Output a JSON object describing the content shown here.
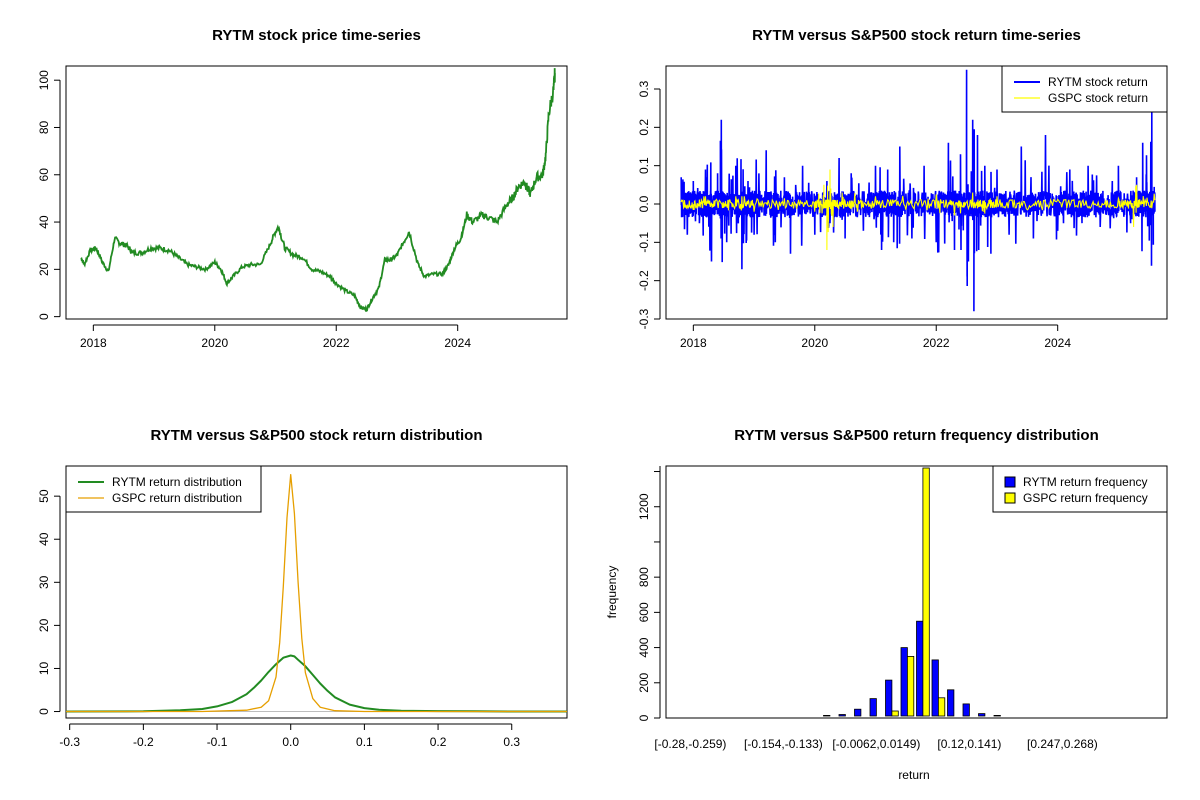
{
  "chart_data": [
    {
      "type": "line",
      "title": "RYTM stock price time-series",
      "xlabel": "",
      "ylabel": "",
      "xlim": [
        2017.55,
        2025.8
      ],
      "ylim": [
        -1,
        106
      ],
      "x_ticks": [
        2018,
        2020,
        2022,
        2024
      ],
      "x_tick_labels": [
        "2018",
        "2020",
        "2022",
        "2024"
      ],
      "y_ticks": [
        0,
        20,
        40,
        60,
        80,
        100
      ],
      "y_tick_labels": [
        "0",
        "20",
        "40",
        "60",
        "80",
        "100"
      ],
      "color": "#228B22",
      "series": [
        {
          "name": "RYTM price",
          "x": [
            2017.8,
            2017.85,
            2017.95,
            2018.05,
            2018.15,
            2018.25,
            2018.35,
            2018.45,
            2018.55,
            2018.65,
            2018.8,
            2018.95,
            2019.1,
            2019.25,
            2019.4,
            2019.55,
            2019.7,
            2019.85,
            2020.0,
            2020.1,
            2020.2,
            2020.3,
            2020.45,
            2020.6,
            2020.75,
            2020.9,
            2021.0,
            2021.05,
            2021.15,
            2021.3,
            2021.45,
            2021.6,
            2021.75,
            2021.9,
            2022.0,
            2022.15,
            2022.3,
            2022.4,
            2022.5,
            2022.6,
            2022.7,
            2022.8,
            2022.9,
            2023.0,
            2023.1,
            2023.2,
            2023.35,
            2023.45,
            2023.6,
            2023.75,
            2023.85,
            2023.95,
            2024.05,
            2024.15,
            2024.25,
            2024.4,
            2024.5,
            2024.65,
            2024.8,
            2024.9,
            2025.0,
            2025.1,
            2025.15,
            2025.2,
            2025.3,
            2025.4,
            2025.45,
            2025.5,
            2025.58,
            2025.6
          ],
          "y": [
            25,
            22,
            28,
            29,
            23,
            19,
            33,
            31,
            30,
            27,
            27,
            29,
            29,
            28,
            25,
            22,
            21,
            20,
            23,
            20,
            14,
            17,
            21,
            22,
            22,
            30,
            36,
            38,
            29,
            26,
            25,
            20,
            19,
            17,
            14,
            11,
            9,
            4,
            3,
            8,
            12,
            24,
            24,
            26,
            31,
            36,
            22,
            17,
            18,
            18,
            22,
            29,
            33,
            43,
            40,
            43,
            42,
            40,
            47,
            50,
            55,
            57,
            54,
            52,
            59,
            60,
            68,
            86,
            96,
            103
          ]
        }
      ]
    },
    {
      "type": "line",
      "title": "RYTM versus S&P500 stock return time-series",
      "xlabel": "",
      "ylabel": "",
      "xlim": [
        2017.55,
        2025.8
      ],
      "ylim": [
        -0.3,
        0.36
      ],
      "x_ticks": [
        2018,
        2020,
        2022,
        2024
      ],
      "x_tick_labels": [
        "2018",
        "2020",
        "2022",
        "2024"
      ],
      "y_ticks": [
        -0.3,
        -0.2,
        -0.1,
        0.0,
        0.1,
        0.2,
        0.3
      ],
      "y_tick_labels": [
        "-0.3",
        "-0.2",
        "-0.1",
        "0.0",
        "0.1",
        "0.2",
        "0.3"
      ],
      "legend": [
        "RYTM stock return",
        "GSPC stock return"
      ],
      "legend_position": "top-right",
      "colors": [
        "#0000FF",
        "#FFFF00"
      ],
      "series": [
        {
          "name": "RYTM stock return",
          "x": [
            2017.8,
            2017.9,
            2018.0,
            2018.1,
            2018.2,
            2018.3,
            2018.4,
            2018.46,
            2018.55,
            2018.7,
            2018.8,
            2018.9,
            2019.0,
            2019.2,
            2019.35,
            2019.5,
            2019.6,
            2019.8,
            2020.0,
            2020.2,
            2020.25,
            2020.4,
            2020.5,
            2020.6,
            2020.8,
            2021.0,
            2021.1,
            2021.2,
            2021.3,
            2021.4,
            2021.6,
            2021.8,
            2022.0,
            2022.2,
            2022.3,
            2022.4,
            2022.5,
            2022.53,
            2022.6,
            2022.62,
            2022.68,
            2022.7,
            2022.8,
            2022.9,
            2023.0,
            2023.2,
            2023.4,
            2023.6,
            2023.8,
            2024.0,
            2024.2,
            2024.4,
            2024.5,
            2024.7,
            2024.9,
            2025.0,
            2025.2,
            2025.3,
            2025.4,
            2025.5,
            2025.55,
            2025.6
          ],
          "y": [
            0.07,
            -0.08,
            0.06,
            -0.05,
            0.09,
            -0.15,
            0.08,
            0.22,
            -0.1,
            0.1,
            -0.17,
            0.06,
            -0.08,
            0.14,
            -0.1,
            0.07,
            -0.13,
            0.1,
            -0.08,
            0.06,
            -0.05,
            0.12,
            -0.09,
            0.08,
            -0.07,
            0.1,
            -0.12,
            0.09,
            -0.1,
            0.15,
            -0.09,
            0.1,
            -0.1,
            0.16,
            -0.12,
            0.13,
            0.35,
            -0.15,
            0.22,
            -0.28,
            0.18,
            -0.12,
            0.1,
            -0.13,
            0.09,
            -0.08,
            0.15,
            -0.09,
            0.18,
            -0.07,
            0.09,
            -0.05,
            0.1,
            -0.06,
            0.06,
            0.1,
            -0.05,
            0.07,
            0.16,
            -0.04,
            0.25,
            -0.02
          ]
        },
        {
          "name": "GSPC stock return",
          "x": [
            2017.8,
            2018.0,
            2018.2,
            2018.5,
            2018.8,
            2019.0,
            2019.5,
            2020.0,
            2020.15,
            2020.2,
            2020.25,
            2020.3,
            2020.45,
            2020.7,
            2021.0,
            2021.5,
            2022.0,
            2022.3,
            2022.6,
            2022.8,
            2023.0,
            2023.5,
            2024.0,
            2024.5,
            2025.0,
            2025.25,
            2025.3,
            2025.6
          ],
          "y": [
            0.005,
            -0.015,
            0.02,
            -0.01,
            0.02,
            -0.02,
            0.015,
            -0.02,
            0.05,
            -0.12,
            0.09,
            -0.06,
            0.03,
            -0.02,
            0.02,
            -0.015,
            0.025,
            -0.03,
            0.03,
            -0.025,
            0.02,
            -0.015,
            0.012,
            -0.01,
            0.015,
            -0.06,
            0.05,
            0.01
          ]
        }
      ]
    },
    {
      "type": "line",
      "title": "RYTM versus S&P500 stock return distribution",
      "xlabel": "",
      "ylabel": "",
      "xlim": [
        -0.305,
        0.375
      ],
      "ylim": [
        -1.5,
        57
      ],
      "x_ticks": [
        -0.3,
        -0.2,
        -0.1,
        0.0,
        0.1,
        0.2,
        0.3
      ],
      "x_tick_labels": [
        "-0.3",
        "-0.2",
        "-0.1",
        "0.0",
        "0.1",
        "0.2",
        "0.3"
      ],
      "y_ticks": [
        0,
        10,
        20,
        30,
        40,
        50
      ],
      "y_tick_labels": [
        "0",
        "10",
        "20",
        "30",
        "40",
        "50"
      ],
      "legend": [
        "RYTM return distribution",
        "GSPC return distribution"
      ],
      "legend_position": "top-left",
      "colors": [
        "#228B22",
        "#E69F00"
      ],
      "series": [
        {
          "name": "RYTM return distribution",
          "x": [
            -0.305,
            -0.2,
            -0.15,
            -0.12,
            -0.1,
            -0.08,
            -0.06,
            -0.05,
            -0.04,
            -0.03,
            -0.02,
            -0.01,
            0.0,
            0.005,
            0.01,
            0.02,
            0.03,
            0.04,
            0.05,
            0.06,
            0.08,
            0.1,
            0.12,
            0.15,
            0.2,
            0.25,
            0.3,
            0.375
          ],
          "y": [
            0,
            0.05,
            0.3,
            0.6,
            1.2,
            2.2,
            4.0,
            5.5,
            7.2,
            9.2,
            11.0,
            12.5,
            13.0,
            12.8,
            12.0,
            10.5,
            8.5,
            6.5,
            4.8,
            3.3,
            1.6,
            0.8,
            0.4,
            0.2,
            0.1,
            0.05,
            0.02,
            0
          ]
        },
        {
          "name": "GSPC return distribution",
          "x": [
            -0.305,
            -0.12,
            -0.06,
            -0.04,
            -0.03,
            -0.02,
            -0.015,
            -0.01,
            -0.005,
            0.0,
            0.005,
            0.01,
            0.015,
            0.02,
            0.03,
            0.04,
            0.06,
            0.1,
            0.375
          ],
          "y": [
            0,
            0,
            0.3,
            1.0,
            2.5,
            8.0,
            16.0,
            29.0,
            45.0,
            55.0,
            46.0,
            30.0,
            17.0,
            9.0,
            3.0,
            1.0,
            0.2,
            0,
            0
          ]
        }
      ]
    },
    {
      "type": "bar",
      "title": "RYTM versus S&P500 return frequency distribution",
      "xlabel": "return",
      "ylabel": "frequency",
      "ylim": [
        0,
        1420
      ],
      "y_ticks": [
        0,
        200,
        400,
        600,
        800,
        1200
      ],
      "y_tick_labels": [
        "0",
        "200",
        "400",
        "600",
        "800",
        "1200"
      ],
      "x_tick_labels": [
        {
          "index": 0,
          "label": "[-0.28,-0.259)"
        },
        {
          "index": 6,
          "label": "[-0.154,-0.133)"
        },
        {
          "index": 12,
          "label": "[-0.0062,0.0149)"
        },
        {
          "index": 18,
          "label": "[0.12,0.141)"
        },
        {
          "index": 24,
          "label": "[0.247,0.268)"
        }
      ],
      "legend": [
        "RYTM return frequency",
        "GSPC return frequency"
      ],
      "legend_position": "top-right",
      "colors": [
        "#0000FF",
        "#FFFF00"
      ],
      "categories_count": 30,
      "series": [
        {
          "name": "RYTM return frequency",
          "values": [
            2,
            1,
            1,
            2,
            2,
            5,
            5,
            6,
            10,
            15,
            20,
            50,
            110,
            215,
            400,
            550,
            330,
            160,
            80,
            25,
            15,
            10,
            5,
            5,
            5,
            10,
            5,
            3,
            2,
            2
          ]
        },
        {
          "name": "GSPC return frequency",
          "values": [
            0,
            0,
            0,
            0,
            0,
            0,
            0,
            0,
            0,
            0,
            0,
            0,
            0,
            40,
            350,
            1420,
            115,
            5,
            0,
            0,
            0,
            0,
            0,
            0,
            0,
            0,
            0,
            0,
            0,
            0
          ]
        }
      ]
    }
  ]
}
